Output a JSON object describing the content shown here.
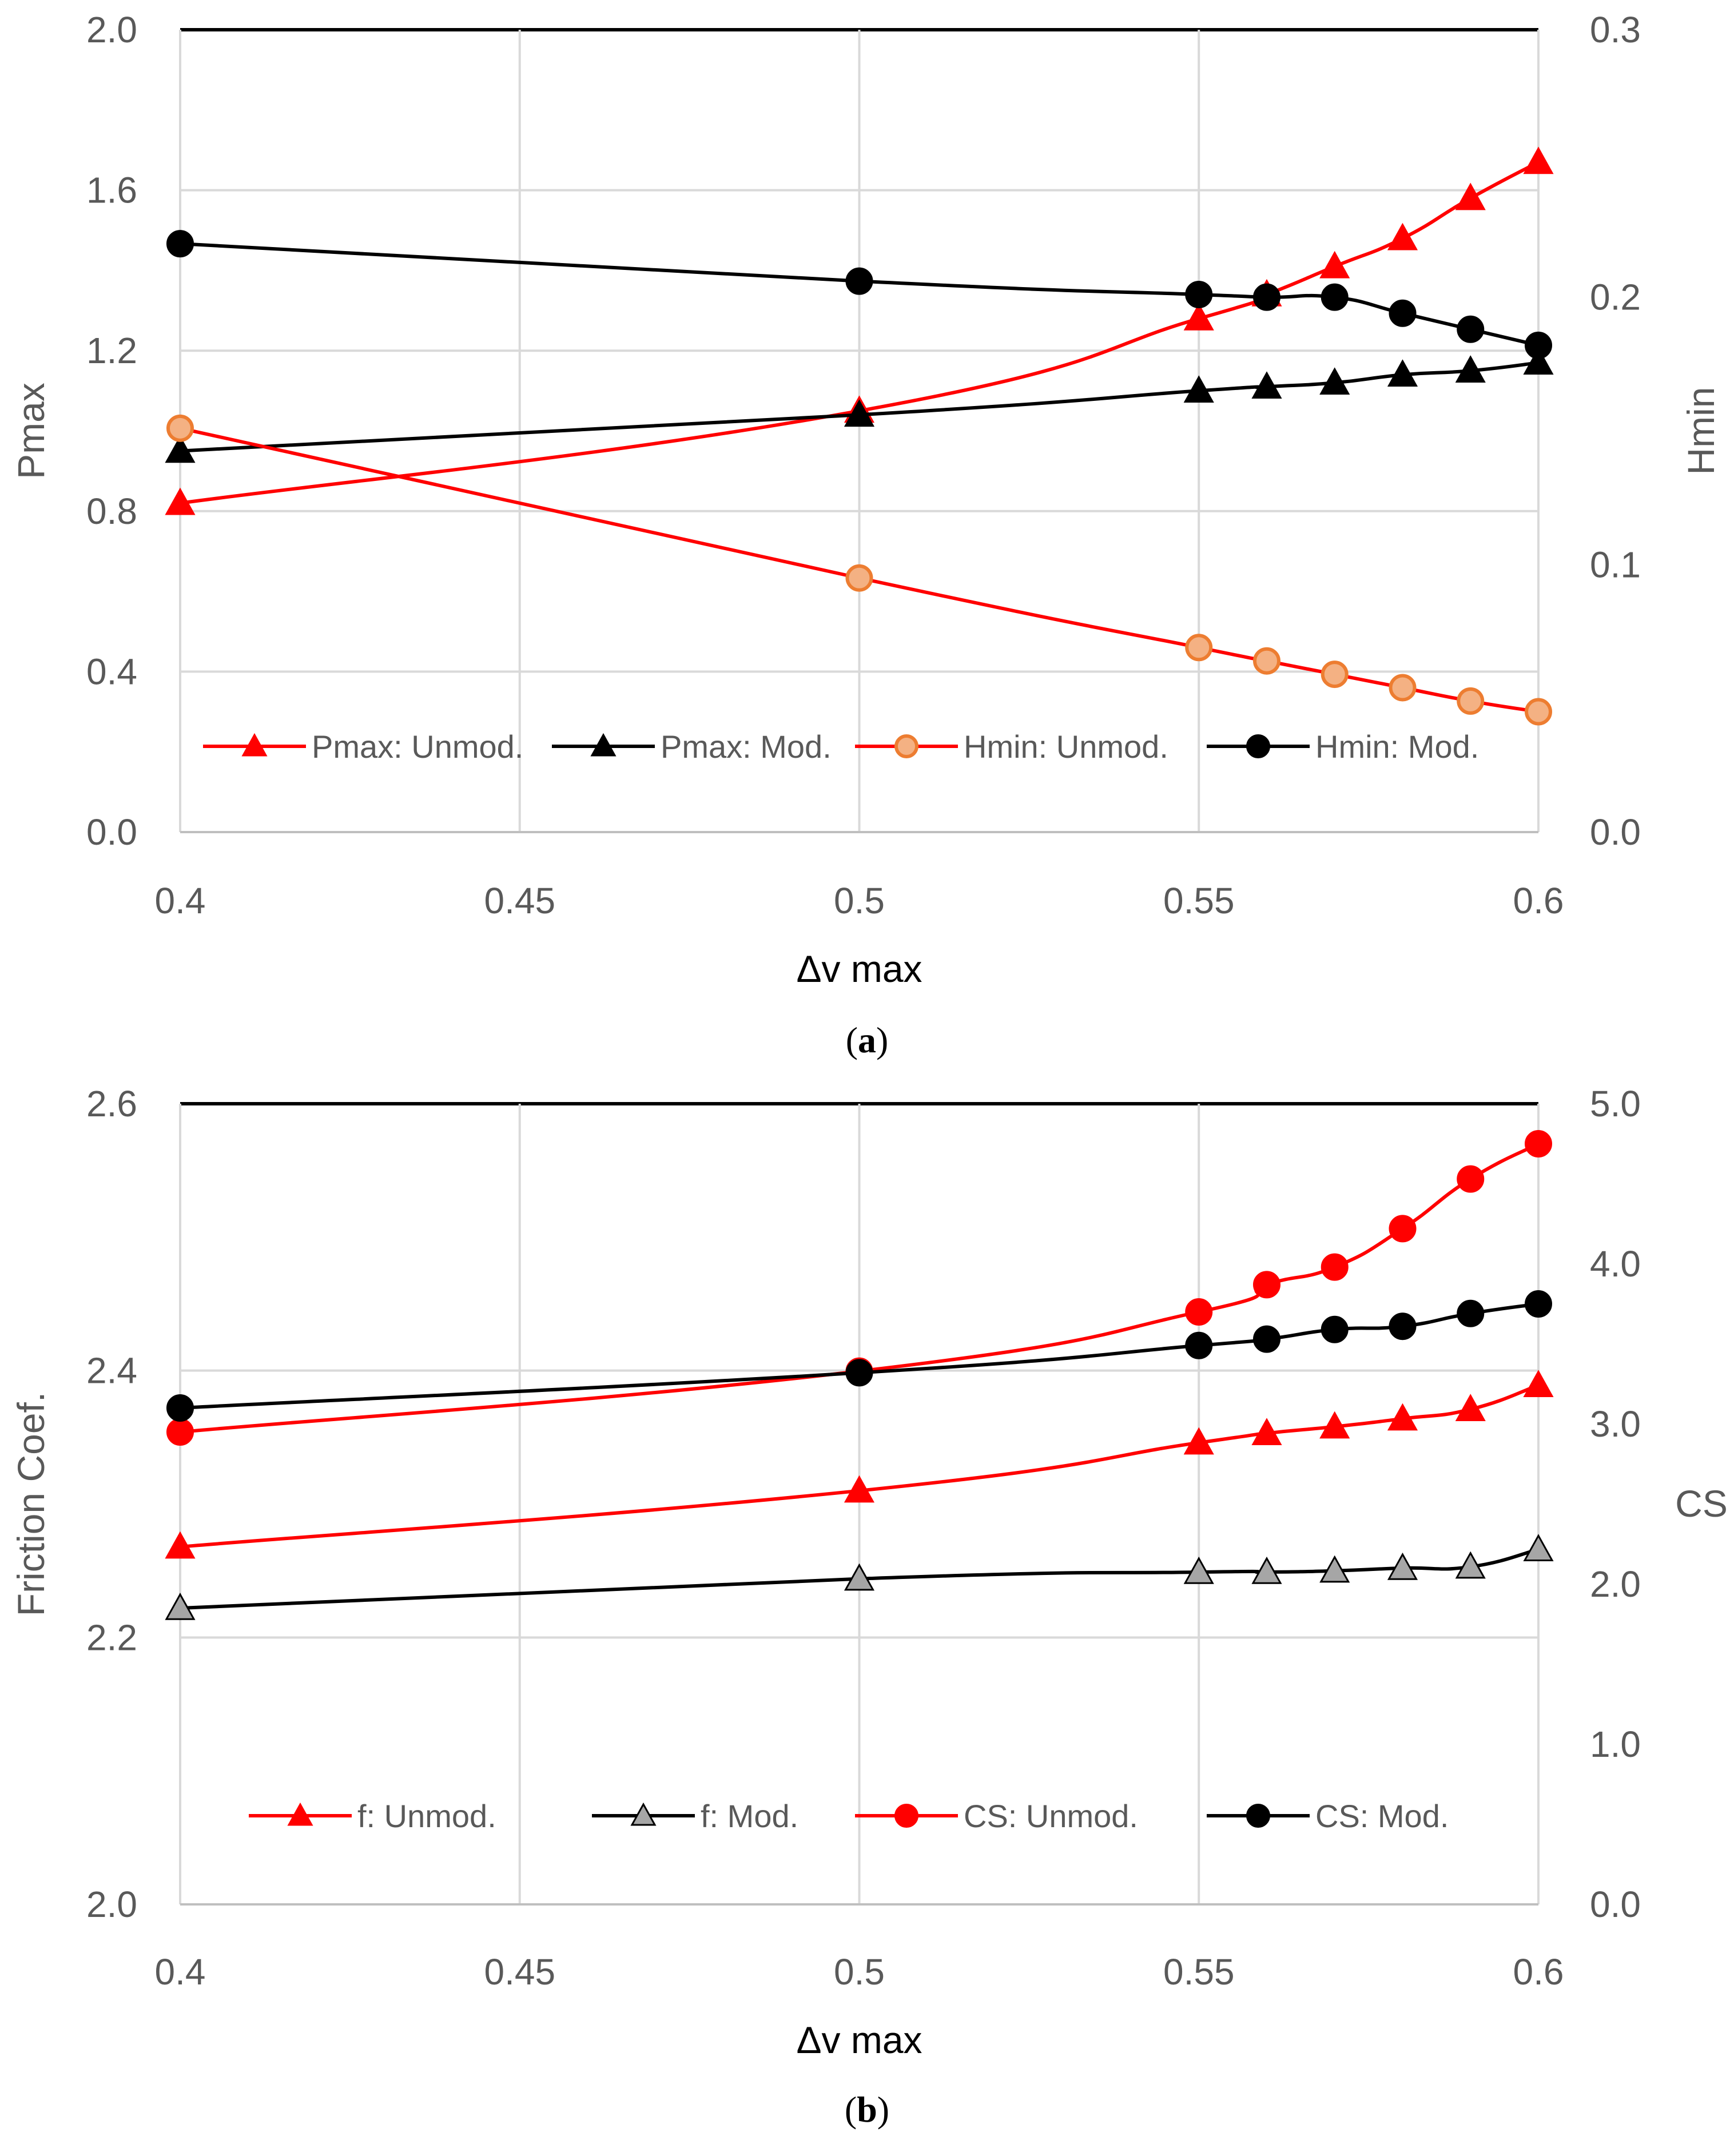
{
  "chart_data": [
    {
      "type": "line",
      "panel": "a",
      "caption_letter": "a",
      "xlabel": "Δv max",
      "ylabel_left": "Pmax",
      "ylabel_right": "Hmin",
      "xticks": [
        "0.4",
        "0.45",
        "0.5",
        "0.55",
        "0.6"
      ],
      "xlim": [
        0.4,
        0.6
      ],
      "ylim_left": [
        0.0,
        2.0
      ],
      "ylim_right": [
        0.0,
        0.3
      ],
      "yticks_left": [
        "0.0",
        "0.4",
        "0.8",
        "1.2",
        "1.6",
        "2.0"
      ],
      "yticks_right": [
        "0.0",
        "0.1",
        "0.2",
        "0.3"
      ],
      "legend_position": "bottom",
      "series": [
        {
          "name": "Pmax: Unmod.",
          "axis": "left",
          "color": "#ff0000",
          "marker": "triangle",
          "marker_fill": "#ff0000",
          "x": [
            0.4,
            0.5,
            0.55,
            0.56,
            0.57,
            0.58,
            0.59,
            0.6
          ],
          "values": [
            0.82,
            1.05,
            1.28,
            1.34,
            1.41,
            1.48,
            1.58,
            1.67
          ]
        },
        {
          "name": "Pmax: Mod.",
          "axis": "left",
          "color": "#000000",
          "marker": "triangle",
          "marker_fill": "#000000",
          "x": [
            0.4,
            0.5,
            0.55,
            0.56,
            0.57,
            0.58,
            0.59,
            0.6
          ],
          "values": [
            0.95,
            1.04,
            1.1,
            1.11,
            1.12,
            1.14,
            1.15,
            1.17
          ]
        },
        {
          "name": "Hmin: Unmod.",
          "axis": "right",
          "color": "#ff0000",
          "marker": "circle",
          "marker_fill": "#f4b183",
          "x": [
            0.4,
            0.5,
            0.55,
            0.56,
            0.57,
            0.58,
            0.59,
            0.6
          ],
          "values": [
            0.151,
            0.095,
            0.069,
            0.064,
            0.059,
            0.054,
            0.049,
            0.045
          ]
        },
        {
          "name": "Hmin: Mod.",
          "axis": "right",
          "color": "#000000",
          "marker": "circle",
          "marker_fill": "#000000",
          "x": [
            0.4,
            0.5,
            0.55,
            0.56,
            0.57,
            0.58,
            0.59,
            0.6
          ],
          "values": [
            0.22,
            0.206,
            0.201,
            0.2,
            0.2,
            0.194,
            0.188,
            0.182
          ]
        }
      ]
    },
    {
      "type": "line",
      "panel": "b",
      "caption_letter": "b",
      "xlabel": "Δv max",
      "ylabel_left": "Friction Coef.",
      "ylabel_right": "CS",
      "xticks": [
        "0.4",
        "0.45",
        "0.5",
        "0.55",
        "0.6"
      ],
      "xlim": [
        0.4,
        0.6
      ],
      "ylim_left": [
        2.0,
        2.6
      ],
      "ylim_right": [
        0.0,
        5.0
      ],
      "yticks_left": [
        "2.0",
        "2.2",
        "2.4",
        "2.6"
      ],
      "yticks_right": [
        "0.0",
        "1.0",
        "2.0",
        "3.0",
        "4.0",
        "5.0"
      ],
      "legend_position": "bottom",
      "series": [
        {
          "name": "f: Unmod.",
          "axis": "left",
          "color": "#ff0000",
          "marker": "triangle",
          "marker_fill": "#ff0000",
          "x": [
            0.4,
            0.5,
            0.55,
            0.56,
            0.57,
            0.58,
            0.59,
            0.6
          ],
          "values": [
            2.268,
            2.31,
            2.346,
            2.353,
            2.358,
            2.364,
            2.371,
            2.389
          ]
        },
        {
          "name": "f: Mod.",
          "axis": "left",
          "color": "#000000",
          "marker": "triangle",
          "marker_fill": "#a6a6a6",
          "x": [
            0.4,
            0.5,
            0.55,
            0.56,
            0.57,
            0.58,
            0.59,
            0.6
          ],
          "values": [
            2.222,
            2.244,
            2.249,
            2.249,
            2.25,
            2.252,
            2.253,
            2.266
          ]
        },
        {
          "name": "CS: Unmod.",
          "axis": "right",
          "color": "#ff0000",
          "marker": "circle",
          "marker_fill": "#ff0000",
          "x": [
            0.4,
            0.5,
            0.55,
            0.56,
            0.57,
            0.58,
            0.59,
            0.6
          ],
          "values": [
            2.95,
            3.33,
            3.7,
            3.87,
            3.98,
            4.22,
            4.53,
            4.75
          ]
        },
        {
          "name": "CS: Mod.",
          "axis": "right",
          "color": "#000000",
          "marker": "circle",
          "marker_fill": "#000000",
          "x": [
            0.4,
            0.5,
            0.55,
            0.56,
            0.57,
            0.58,
            0.59,
            0.6
          ],
          "values": [
            3.1,
            3.32,
            3.49,
            3.53,
            3.59,
            3.61,
            3.69,
            3.75
          ]
        }
      ]
    }
  ]
}
